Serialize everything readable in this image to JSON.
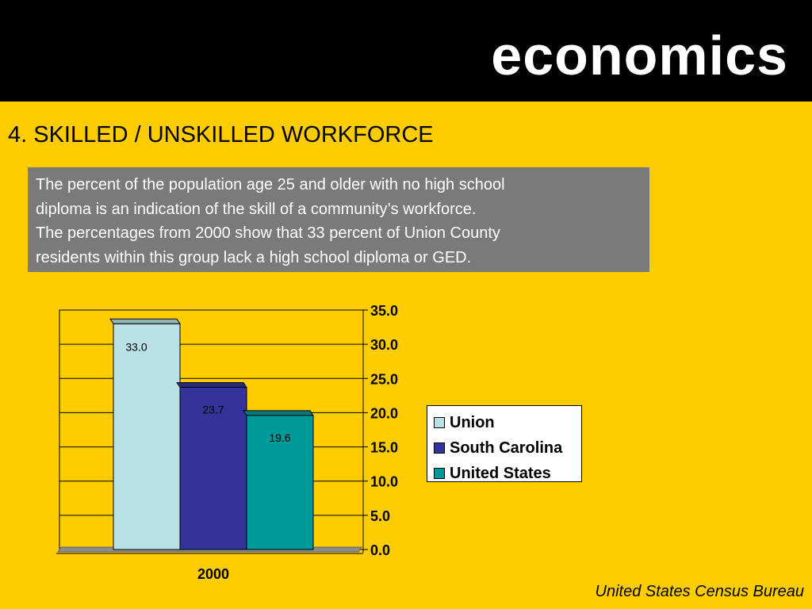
{
  "header": {
    "title": "economics"
  },
  "section_title": "4.  SKILLED / UNSKILLED WORKFORCE",
  "description_lines": [
    "The percent of the population age 25 and older with no high school",
    "diploma is an indication of the skill of a community’s workforce.",
    "The percentages from 2000 show that 33 percent of Union County",
    "residents within this group lack a high school diploma or GED."
  ],
  "source": "United States Census Bureau",
  "colors": {
    "background": "#FFCC00",
    "header": "#000000",
    "description_box": "#7A7A7A"
  },
  "chart_data": {
    "type": "bar",
    "categories": [
      "2000"
    ],
    "series": [
      {
        "name": "Union",
        "values": [
          33.0
        ],
        "color": "#B9E0E4",
        "label": "33.0"
      },
      {
        "name": "South Carolina",
        "values": [
          23.7
        ],
        "color": "#333399",
        "label": "23.7"
      },
      {
        "name": "United States",
        "values": [
          19.6
        ],
        "color": "#009999",
        "label": "19.6"
      }
    ],
    "ylim": [
      0,
      35
    ],
    "yticks": [
      "0.0",
      "5.0",
      "10.0",
      "15.0",
      "20.0",
      "25.0",
      "30.0",
      "35.0"
    ],
    "y_axis_side": "right",
    "grid": true,
    "style": "3d",
    "legend_position": "right",
    "title": "",
    "xlabel": "",
    "ylabel": ""
  }
}
